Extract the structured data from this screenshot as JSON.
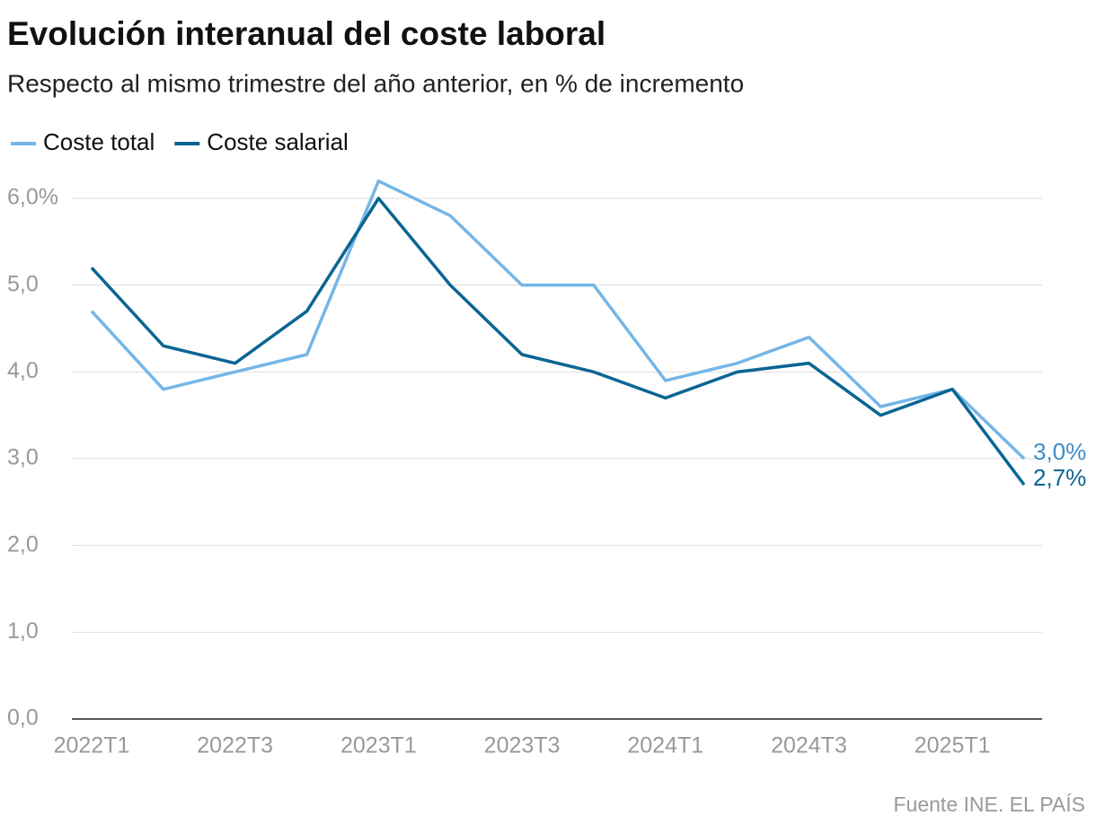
{
  "chart_data": {
    "type": "line",
    "title": "Evolución interanual del coste laboral",
    "subtitle": "Respecto al mismo trimestre del año anterior, en % de incremento",
    "source": "Fuente INE. EL PAÍS",
    "categories": [
      "2022T1",
      null,
      "2022T3",
      null,
      "2023T1",
      null,
      "2023T3",
      null,
      "2024T1",
      null,
      "2024T3",
      null,
      "2025T1",
      null
    ],
    "series": [
      {
        "name": "Coste total",
        "color": "#74b6e8",
        "values": [
          4.7,
          3.8,
          4.0,
          4.2,
          6.2,
          5.8,
          5.0,
          5.0,
          3.9,
          4.1,
          4.4,
          3.6,
          3.8,
          3.0
        ],
        "value_labels": [
          null,
          null,
          null,
          null,
          null,
          null,
          null,
          null,
          null,
          null,
          null,
          null,
          null,
          "3,0%"
        ],
        "label_color": "#3f8cc4"
      },
      {
        "name": "Coste salarial",
        "color": "#0a6593",
        "values": [
          5.2,
          4.3,
          4.1,
          4.7,
          6.0,
          5.0,
          4.2,
          4.0,
          3.7,
          4.0,
          4.1,
          3.5,
          3.8,
          2.7
        ],
        "value_labels": [
          null,
          null,
          null,
          null,
          null,
          null,
          null,
          null,
          null,
          null,
          null,
          null,
          null,
          "2,7%"
        ],
        "label_color": "#0a6593"
      }
    ],
    "ylim": [
      0,
      6
    ],
    "yticks": [
      {
        "value": 0,
        "label": "0,0"
      },
      {
        "value": 1,
        "label": "1,0"
      },
      {
        "value": 2,
        "label": "2,0"
      },
      {
        "value": 3,
        "label": "3,0"
      },
      {
        "value": 4,
        "label": "4,0"
      },
      {
        "value": 5,
        "label": "5,0"
      },
      {
        "value": 6,
        "label": "6,0%"
      }
    ],
    "grid": true,
    "legend": "top-left"
  }
}
